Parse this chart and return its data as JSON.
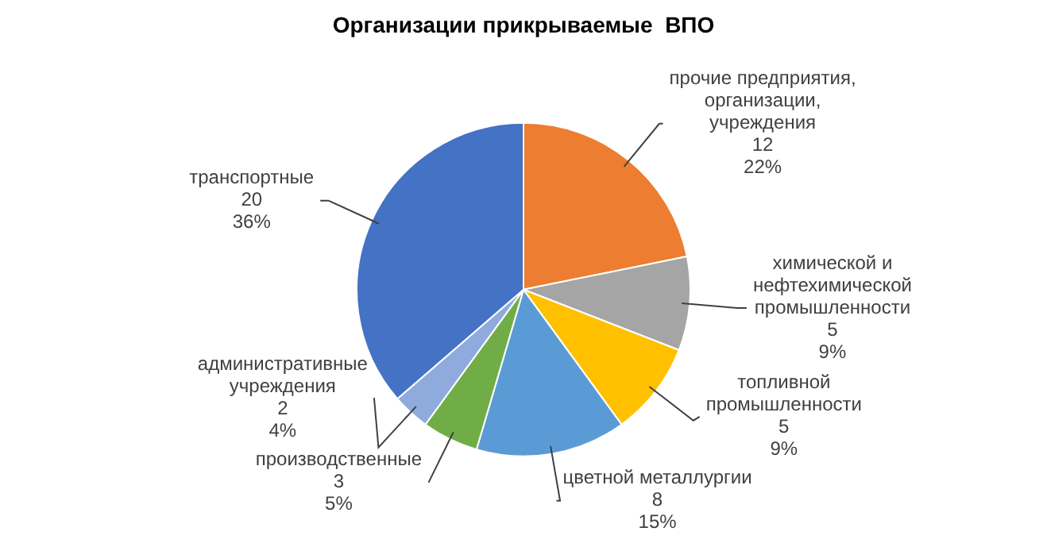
{
  "chart_data": {
    "type": "pie",
    "title": "Организации прикрываемые  ВПО",
    "categories": [
      "прочие предприятия, организации, учреждения",
      "химической и нефтехимической промышленности",
      "топливной промышленности",
      "цветной металлургии",
      "производственные",
      "административные учреждения",
      "транспортные"
    ],
    "values": [
      12,
      5,
      5,
      8,
      3,
      2,
      20
    ],
    "colors": [
      "#ed7d31",
      "#a5a5a5",
      "#ffc000",
      "#5b9bd5",
      "#70ad47",
      "#8faadc",
      "#4472c4"
    ],
    "value_labels": [
      "12\n22%",
      "5\n9%",
      "5\n9%",
      "8\n15%",
      "3\n5%",
      "2\n4%",
      "20\n36%"
    ],
    "legend": false
  }
}
